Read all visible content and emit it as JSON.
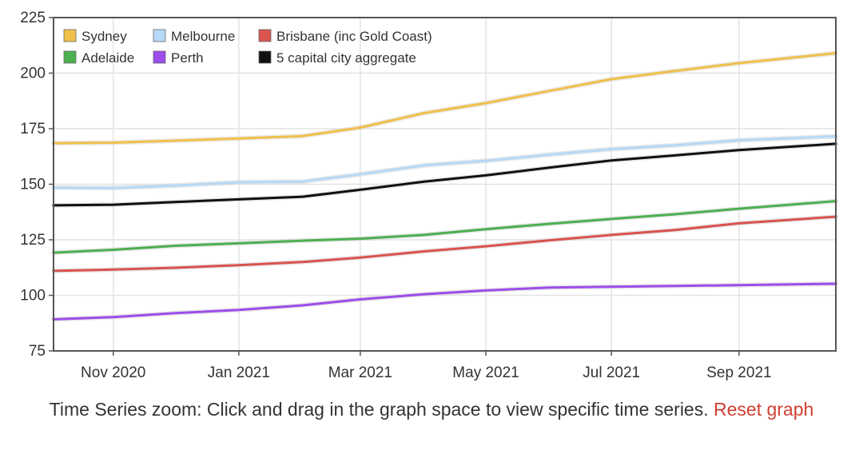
{
  "chart_data": {
    "type": "line",
    "title": "",
    "xlabel": "",
    "ylabel": "",
    "x_domain": [
      "2020-10-03",
      "2021-10-18"
    ],
    "ylim": [
      75,
      225
    ],
    "yticks": [
      75,
      100,
      125,
      150,
      175,
      200,
      225
    ],
    "xticks": [
      {
        "date": "2020-11-01",
        "label": "Nov 2020"
      },
      {
        "date": "2021-01-01",
        "label": "Jan 2021"
      },
      {
        "date": "2021-03-01",
        "label": "Mar 2021"
      },
      {
        "date": "2021-05-01",
        "label": "May 2021"
      },
      {
        "date": "2021-07-01",
        "label": "Jul 2021"
      },
      {
        "date": "2021-09-01",
        "label": "Sep 2021"
      }
    ],
    "grid": true,
    "legend_position": "top-left",
    "series": [
      {
        "name": "Sydney",
        "color": "#f0c04a",
        "points": [
          [
            "2020-10-03",
            168.5
          ],
          [
            "2020-11-01",
            168.7
          ],
          [
            "2020-12-01",
            169.6
          ],
          [
            "2021-01-01",
            170.6
          ],
          [
            "2021-02-01",
            171.7
          ],
          [
            "2021-03-01",
            175.5
          ],
          [
            "2021-04-01",
            182
          ],
          [
            "2021-05-01",
            186.5
          ],
          [
            "2021-06-01",
            192
          ],
          [
            "2021-07-01",
            197.3
          ],
          [
            "2021-08-01",
            201
          ],
          [
            "2021-09-01",
            204.5
          ],
          [
            "2021-10-18",
            209
          ]
        ]
      },
      {
        "name": "Melbourne",
        "color": "#b5d9f7",
        "points": [
          [
            "2020-10-03",
            148.5
          ],
          [
            "2020-11-01",
            148.3
          ],
          [
            "2020-12-01",
            149.4
          ],
          [
            "2021-01-01",
            150.9
          ],
          [
            "2021-02-01",
            151.2
          ],
          [
            "2021-03-01",
            154.5
          ],
          [
            "2021-04-01",
            158.5
          ],
          [
            "2021-05-01",
            160.5
          ],
          [
            "2021-06-01",
            163.3
          ],
          [
            "2021-07-01",
            165.8
          ],
          [
            "2021-08-01",
            167.5
          ],
          [
            "2021-09-01",
            169.8
          ],
          [
            "2021-10-18",
            171.6
          ]
        ]
      },
      {
        "name": "Brisbane (inc Gold Coast)",
        "color": "#d9534f",
        "points": [
          [
            "2020-10-03",
            111
          ],
          [
            "2020-11-01",
            111.6
          ],
          [
            "2020-12-01",
            112.4
          ],
          [
            "2021-01-01",
            113.6
          ],
          [
            "2021-02-01",
            115
          ],
          [
            "2021-03-01",
            117
          ],
          [
            "2021-04-01",
            119.8
          ],
          [
            "2021-05-01",
            122.1
          ],
          [
            "2021-06-01",
            124.8
          ],
          [
            "2021-07-01",
            127.2
          ],
          [
            "2021-08-01",
            129.4
          ],
          [
            "2021-09-01",
            132.4
          ],
          [
            "2021-10-18",
            135.4
          ]
        ]
      },
      {
        "name": "Adelaide",
        "color": "#4caf50",
        "points": [
          [
            "2020-10-03",
            119.2
          ],
          [
            "2020-11-01",
            120.5
          ],
          [
            "2020-12-01",
            122.3
          ],
          [
            "2021-01-01",
            123.4
          ],
          [
            "2021-02-01",
            124.6
          ],
          [
            "2021-03-01",
            125.5
          ],
          [
            "2021-04-01",
            127.2
          ],
          [
            "2021-05-01",
            129.8
          ],
          [
            "2021-06-01",
            132.2
          ],
          [
            "2021-07-01",
            134.4
          ],
          [
            "2021-08-01",
            136.5
          ],
          [
            "2021-09-01",
            139
          ],
          [
            "2021-10-18",
            142.4
          ]
        ]
      },
      {
        "name": "Perth",
        "color": "#9c4dea",
        "points": [
          [
            "2020-10-03",
            89.2
          ],
          [
            "2020-11-01",
            90.2
          ],
          [
            "2020-12-01",
            92
          ],
          [
            "2021-01-01",
            93.4
          ],
          [
            "2021-02-01",
            95.5
          ],
          [
            "2021-03-01",
            98.2
          ],
          [
            "2021-04-01",
            100.5
          ],
          [
            "2021-05-01",
            102.2
          ],
          [
            "2021-06-01",
            103.5
          ],
          [
            "2021-07-01",
            103.9
          ],
          [
            "2021-08-01",
            104.2
          ],
          [
            "2021-09-01",
            104.6
          ],
          [
            "2021-10-18",
            105.2
          ]
        ]
      },
      {
        "name": "5 capital city aggregate",
        "color": "#111111",
        "points": [
          [
            "2020-10-03",
            140.5
          ],
          [
            "2020-11-01",
            140.8
          ],
          [
            "2020-12-01",
            142
          ],
          [
            "2021-01-01",
            143.2
          ],
          [
            "2021-02-01",
            144.4
          ],
          [
            "2021-03-01",
            147.5
          ],
          [
            "2021-04-01",
            151.2
          ],
          [
            "2021-05-01",
            154
          ],
          [
            "2021-06-01",
            157.5
          ],
          [
            "2021-07-01",
            160.7
          ],
          [
            "2021-08-01",
            163
          ],
          [
            "2021-09-01",
            165.4
          ],
          [
            "2021-10-18",
            168.2
          ]
        ]
      }
    ]
  },
  "caption": {
    "text": "Time Series zoom: Click and drag in the graph space to view specific time series. ",
    "reset_link": "Reset graph"
  }
}
